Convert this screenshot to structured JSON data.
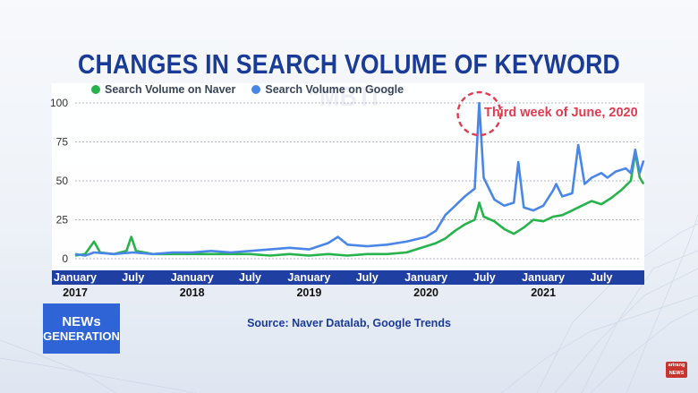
{
  "title": "CHANGES IN SEARCH VOLUME OF KEYWORD “MBTI”",
  "source": "Source: Naver Datalab, Google Trends",
  "logo": {
    "line1": "NEWs",
    "line2": "GENERATION"
  },
  "brand": {
    "line1": "arirang",
    "line2": "NEWS"
  },
  "annotation": "Third week of June, 2020",
  "colors": {
    "naver": "#27b34b",
    "google": "#4a86e8",
    "axis_bar": "#1f3fa3",
    "title": "#1b3b98",
    "annotation": "#e23a4e"
  },
  "chart_data": {
    "type": "line",
    "x_start": "2017-01",
    "x_end": "2021-11",
    "ylim": [
      0,
      100
    ],
    "yticks": [
      0,
      25,
      50,
      75,
      100
    ],
    "grid": true,
    "legend_position": "top-left",
    "xticks": [
      {
        "label": "January",
        "x": "2017-01"
      },
      {
        "label": "July",
        "x": "2017-07"
      },
      {
        "label": "January",
        "x": "2018-01"
      },
      {
        "label": "July",
        "x": "2018-07"
      },
      {
        "label": "January",
        "x": "2019-01"
      },
      {
        "label": "July",
        "x": "2019-07"
      },
      {
        "label": "January",
        "x": "2020-01"
      },
      {
        "label": "July",
        "x": "2020-07"
      },
      {
        "label": "January",
        "x": "2021-01"
      },
      {
        "label": "July",
        "x": "2021-07"
      }
    ],
    "years": [
      {
        "label": "2017",
        "x": "2017-01"
      },
      {
        "label": "2018",
        "x": "2018-01"
      },
      {
        "label": "2019",
        "x": "2019-01"
      },
      {
        "label": "2020",
        "x": "2020-01"
      },
      {
        "label": "2021",
        "x": "2021-01"
      }
    ],
    "annotation_point": {
      "x": "2020-06-15",
      "y": 100
    },
    "series": [
      {
        "name": "Search Volume on Naver",
        "points": [
          [
            "2017-01-01",
            2
          ],
          [
            "2017-02-01",
            3
          ],
          [
            "2017-03-01",
            11
          ],
          [
            "2017-03-20",
            4
          ],
          [
            "2017-05-01",
            3
          ],
          [
            "2017-06-10",
            5
          ],
          [
            "2017-06-25",
            14
          ],
          [
            "2017-07-10",
            5
          ],
          [
            "2017-09-01",
            3
          ],
          [
            "2017-11-01",
            3
          ],
          [
            "2018-01-01",
            3
          ],
          [
            "2018-03-01",
            3
          ],
          [
            "2018-05-01",
            3
          ],
          [
            "2018-07-01",
            3
          ],
          [
            "2018-09-01",
            2
          ],
          [
            "2018-11-01",
            3
          ],
          [
            "2019-01-01",
            2
          ],
          [
            "2019-03-01",
            3
          ],
          [
            "2019-05-01",
            2
          ],
          [
            "2019-07-01",
            3
          ],
          [
            "2019-09-01",
            3
          ],
          [
            "2019-11-01",
            4
          ],
          [
            "2020-01-01",
            8
          ],
          [
            "2020-02-01",
            10
          ],
          [
            "2020-03-01",
            13
          ],
          [
            "2020-04-01",
            18
          ],
          [
            "2020-05-01",
            22
          ],
          [
            "2020-06-01",
            25
          ],
          [
            "2020-06-15",
            36
          ],
          [
            "2020-06-29",
            27
          ],
          [
            "2020-08-01",
            24
          ],
          [
            "2020-09-01",
            19
          ],
          [
            "2020-10-01",
            16
          ],
          [
            "2020-11-01",
            20
          ],
          [
            "2020-12-01",
            25
          ],
          [
            "2021-01-01",
            24
          ],
          [
            "2021-02-01",
            27
          ],
          [
            "2021-03-01",
            28
          ],
          [
            "2021-04-01",
            31
          ],
          [
            "2021-05-01",
            34
          ],
          [
            "2021-06-01",
            37
          ],
          [
            "2021-07-01",
            35
          ],
          [
            "2021-08-01",
            39
          ],
          [
            "2021-09-01",
            44
          ],
          [
            "2021-10-01",
            50
          ],
          [
            "2021-10-15",
            68
          ],
          [
            "2021-10-29",
            52
          ],
          [
            "2021-11-10",
            48
          ]
        ]
      },
      {
        "name": "Search Volume on Google",
        "points": [
          [
            "2017-01-01",
            3
          ],
          [
            "2017-02-01",
            2
          ],
          [
            "2017-03-01",
            4
          ],
          [
            "2017-05-01",
            3
          ],
          [
            "2017-07-01",
            4
          ],
          [
            "2017-09-01",
            3
          ],
          [
            "2017-11-01",
            4
          ],
          [
            "2018-01-01",
            4
          ],
          [
            "2018-03-01",
            5
          ],
          [
            "2018-05-01",
            4
          ],
          [
            "2018-07-01",
            5
          ],
          [
            "2018-09-01",
            6
          ],
          [
            "2018-11-01",
            7
          ],
          [
            "2019-01-01",
            6
          ],
          [
            "2019-03-01",
            10
          ],
          [
            "2019-04-01",
            14
          ],
          [
            "2019-05-01",
            9
          ],
          [
            "2019-07-01",
            8
          ],
          [
            "2019-09-01",
            9
          ],
          [
            "2019-11-01",
            11
          ],
          [
            "2020-01-01",
            14
          ],
          [
            "2020-02-01",
            18
          ],
          [
            "2020-03-01",
            28
          ],
          [
            "2020-04-01",
            34
          ],
          [
            "2020-05-01",
            40
          ],
          [
            "2020-06-01",
            45
          ],
          [
            "2020-06-15",
            100
          ],
          [
            "2020-06-29",
            52
          ],
          [
            "2020-08-01",
            38
          ],
          [
            "2020-09-01",
            34
          ],
          [
            "2020-10-01",
            36
          ],
          [
            "2020-10-15",
            62
          ],
          [
            "2020-11-01",
            33
          ],
          [
            "2020-12-01",
            31
          ],
          [
            "2021-01-01",
            34
          ],
          [
            "2021-02-01",
            44
          ],
          [
            "2021-02-10",
            48
          ],
          [
            "2021-03-01",
            40
          ],
          [
            "2021-04-01",
            42
          ],
          [
            "2021-04-20",
            73
          ],
          [
            "2021-05-10",
            48
          ],
          [
            "2021-06-01",
            52
          ],
          [
            "2021-07-01",
            55
          ],
          [
            "2021-07-20",
            52
          ],
          [
            "2021-08-15",
            56
          ],
          [
            "2021-09-15",
            58
          ],
          [
            "2021-10-01",
            55
          ],
          [
            "2021-10-15",
            70
          ],
          [
            "2021-10-29",
            55
          ],
          [
            "2021-11-10",
            63
          ]
        ]
      }
    ]
  }
}
